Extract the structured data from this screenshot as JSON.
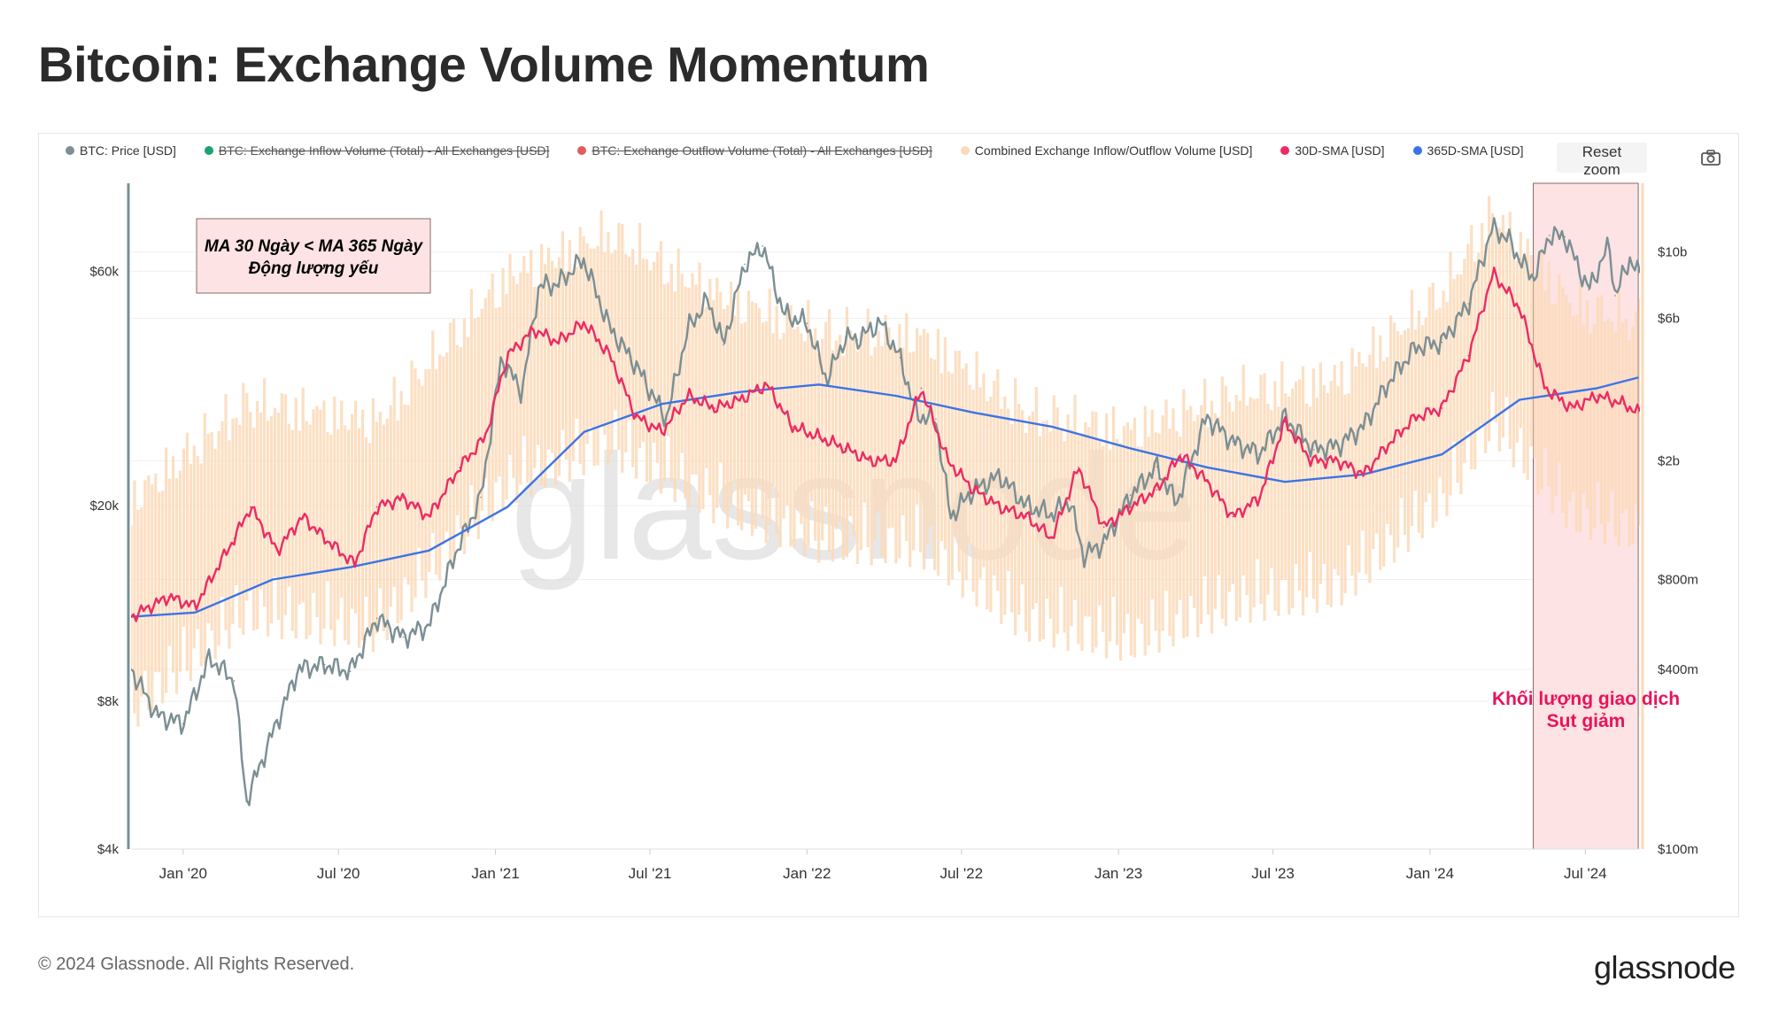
{
  "page": {
    "title": "Bitcoin: Exchange Volume Momentum",
    "copyright": "© 2024 Glassnode. All Rights Reserved.",
    "brand_logo": "glassnode"
  },
  "toolbar": {
    "reset_zoom_label": "Reset zoom",
    "camera_icon": "camera-icon"
  },
  "legend": [
    {
      "label": "BTC: Price [USD]",
      "color": "#7b8f94",
      "active": true
    },
    {
      "label": "BTC: Exchange Inflow Volume (Total) - All Exchanges [USD]",
      "color": "#1aa36d",
      "active": false
    },
    {
      "label": "BTC: Exchange Outflow Volume (Total) - All Exchanges [USD]",
      "color": "#e05b60",
      "active": false
    },
    {
      "label": "Combined Exchange Inflow/Outflow Volume [USD]",
      "color": "#fcd9b8",
      "active": true
    },
    {
      "label": "30D-SMA [USD]",
      "color": "#ec2c63",
      "active": true
    },
    {
      "label": "365D-SMA [USD]",
      "color": "#3b74e6",
      "active": true
    }
  ],
  "annotations": {
    "momentum_box_line1": "MA 30 Ngày < MA 365 Ngày",
    "momentum_box_line2": "Động lượng yếu",
    "decline_line1": "Khối lượng giao dịch",
    "decline_line2": "Sụt giảm",
    "watermark": "glassnode"
  },
  "chart_data": {
    "type": "line",
    "x_tick_labels": [
      "Jan '20",
      "Jul '20",
      "Jan '21",
      "Jul '21",
      "Jan '22",
      "Jul '22",
      "Jan '23",
      "Jul '23",
      "Jan '24",
      "Jul '24"
    ],
    "x_range": [
      "2019-11-01",
      "2024-09-03"
    ],
    "left_axis": {
      "label": "",
      "scale": "log",
      "tick_labels": [
        "$4k",
        "$8k",
        "$20k",
        "$60k"
      ],
      "tick_values": [
        4000,
        8000,
        20000,
        60000
      ],
      "range": [
        4000,
        80000
      ]
    },
    "right_axis": {
      "label": "",
      "scale": "log",
      "tick_labels": [
        "$100m",
        "$400m",
        "$800m",
        "$2b",
        "$6b",
        "$10b"
      ],
      "tick_values": [
        100000000,
        400000000,
        800000000,
        2000000000,
        6000000000,
        10000000000
      ],
      "range": [
        100000000,
        17000000000
      ]
    },
    "highlight_range": [
      "2024-05-01",
      "2024-09-01"
    ],
    "grid": true,
    "legend_position": "top",
    "colors": {
      "price": "#7b8f94",
      "volume": "#fcd9b8",
      "sma30": "#ec2c63",
      "sma365": "#3b74e6",
      "highlight_fill": "#fde3e3",
      "highlight_border": "#8a6a6a"
    },
    "series": [
      {
        "name": "BTC: Price [USD]",
        "axis": "left",
        "x": [
          "2019-11-01",
          "2019-12-01",
          "2020-01-01",
          "2020-02-01",
          "2020-03-01",
          "2020-03-15",
          "2020-04-15",
          "2020-05-15",
          "2020-06-15",
          "2020-07-15",
          "2020-08-15",
          "2020-09-15",
          "2020-10-15",
          "2020-11-15",
          "2020-12-15",
          "2021-01-08",
          "2021-02-01",
          "2021-02-21",
          "2021-03-15",
          "2021-04-14",
          "2021-05-15",
          "2021-06-15",
          "2021-07-20",
          "2021-08-15",
          "2021-09-07",
          "2021-09-25",
          "2021-10-20",
          "2021-11-10",
          "2021-12-05",
          "2022-01-01",
          "2022-01-24",
          "2022-02-15",
          "2022-03-01",
          "2022-03-28",
          "2022-04-20",
          "2022-05-10",
          "2022-06-01",
          "2022-06-18",
          "2022-07-15",
          "2022-08-15",
          "2022-09-15",
          "2022-10-15",
          "2022-11-05",
          "2022-11-21",
          "2022-12-15",
          "2023-01-15",
          "2023-02-15",
          "2023-03-10",
          "2023-04-14",
          "2023-05-15",
          "2023-06-15",
          "2023-07-15",
          "2023-08-18",
          "2023-09-15",
          "2023-10-15",
          "2023-11-15",
          "2023-12-15",
          "2024-01-15",
          "2024-02-15",
          "2024-03-14",
          "2024-04-01",
          "2024-04-15",
          "2024-05-01",
          "2024-05-20",
          "2024-06-07",
          "2024-07-05",
          "2024-07-29",
          "2024-08-05",
          "2024-08-23",
          "2024-09-01"
        ],
        "values": [
          9300,
          7500,
          7200,
          9800,
          8800,
          5000,
          6900,
          9300,
          9500,
          9200,
          11800,
          10800,
          11400,
          16000,
          20800,
          40000,
          34000,
          56000,
          56500,
          63500,
          46000,
          38500,
          30000,
          46000,
          52500,
          42500,
          62000,
          67500,
          49000,
          47000,
          36000,
          44000,
          43500,
          47200,
          40000,
          30500,
          30000,
          19000,
          21500,
          23000,
          20000,
          19200,
          20500,
          15800,
          16800,
          21000,
          24000,
          20200,
          30300,
          27000,
          25500,
          30300,
          26000,
          26500,
          29000,
          36000,
          42000,
          43000,
          51500,
          73500,
          70000,
          63500,
          58000,
          71000,
          70500,
          55000,
          68000,
          53500,
          64000,
          59000
        ]
      },
      {
        "name": "30D-SMA [USD]",
        "axis": "right",
        "x": [
          "2019-11-01",
          "2019-12-15",
          "2020-01-15",
          "2020-03-01",
          "2020-03-20",
          "2020-04-20",
          "2020-05-20",
          "2020-06-15",
          "2020-07-20",
          "2020-08-15",
          "2020-09-15",
          "2020-10-15",
          "2020-11-20",
          "2020-12-20",
          "2021-01-15",
          "2021-02-15",
          "2021-03-15",
          "2021-04-15",
          "2021-05-15",
          "2021-06-15",
          "2021-07-15",
          "2021-08-15",
          "2021-09-15",
          "2021-10-15",
          "2021-11-15",
          "2021-12-15",
          "2022-01-15",
          "2022-02-15",
          "2022-03-15",
          "2022-04-15",
          "2022-05-15",
          "2022-06-15",
          "2022-07-15",
          "2022-08-15",
          "2022-09-15",
          "2022-10-15",
          "2022-11-15",
          "2022-12-15",
          "2023-01-15",
          "2023-02-15",
          "2023-03-15",
          "2023-04-15",
          "2023-05-15",
          "2023-06-15",
          "2023-07-15",
          "2023-08-15",
          "2023-09-15",
          "2023-10-15",
          "2023-11-15",
          "2023-12-15",
          "2024-01-15",
          "2024-02-15",
          "2024-03-15",
          "2024-04-15",
          "2024-05-15",
          "2024-06-15",
          "2024-07-15",
          "2024-08-15",
          "2024-09-01"
        ],
        "values": [
          600000000,
          700000000,
          650000000,
          1100000000,
          1400000000,
          1000000000,
          1300000000,
          1100000000,
          900000000,
          1400000000,
          1500000000,
          1300000000,
          1900000000,
          2400000000,
          4500000000,
          5500000000,
          5000000000,
          5800000000,
          4500000000,
          2800000000,
          2500000000,
          3300000000,
          3000000000,
          3200000000,
          3600000000,
          2600000000,
          2400000000,
          2200000000,
          2000000000,
          2000000000,
          3500000000,
          2000000000,
          1600000000,
          1400000000,
          1300000000,
          1100000000,
          1900000000,
          1200000000,
          1400000000,
          1600000000,
          2100000000,
          1700000000,
          1300000000,
          1500000000,
          2700000000,
          2000000000,
          2000000000,
          1800000000,
          2300000000,
          2800000000,
          3000000000,
          4500000000,
          8500000000,
          6500000000,
          3500000000,
          3000000000,
          3300000000,
          3100000000,
          2900000000
        ]
      },
      {
        "name": "365D-SMA [USD]",
        "axis": "right",
        "x": [
          "2019-11-01",
          "2020-01-15",
          "2020-04-15",
          "2020-07-15",
          "2020-10-15",
          "2021-01-15",
          "2021-04-15",
          "2021-07-15",
          "2021-10-15",
          "2022-01-15",
          "2022-04-15",
          "2022-07-15",
          "2022-10-15",
          "2023-01-15",
          "2023-04-15",
          "2023-07-15",
          "2023-10-15",
          "2024-01-15",
          "2024-04-15",
          "2024-07-15",
          "2024-09-01"
        ],
        "values": [
          600000000,
          620000000,
          800000000,
          880000000,
          1000000000,
          1400000000,
          2500000000,
          3100000000,
          3400000000,
          3600000000,
          3300000000,
          2900000000,
          2600000000,
          2200000000,
          1900000000,
          1700000000,
          1800000000,
          2100000000,
          3200000000,
          3500000000,
          3800000000
        ]
      },
      {
        "name": "Combined Exchange Inflow/Outflow Volume [USD]",
        "axis": "right",
        "x": [
          "2019-11-01",
          "2020-03-15",
          "2020-08-15",
          "2021-01-15",
          "2021-05-15",
          "2021-09-15",
          "2022-01-15",
          "2022-05-15",
          "2022-09-15",
          "2023-01-15",
          "2023-05-15",
          "2023-09-15",
          "2024-01-15",
          "2024-03-15",
          "2024-06-15",
          "2024-09-01"
        ],
        "values": [
          700000000,
          1500000000,
          1300000000,
          4000000000,
          5500000000,
          3500000000,
          2600000000,
          2500000000,
          1400000000,
          1200000000,
          1600000000,
          1800000000,
          3500000000,
          6500000000,
          3200000000,
          2800000000
        ]
      }
    ]
  }
}
